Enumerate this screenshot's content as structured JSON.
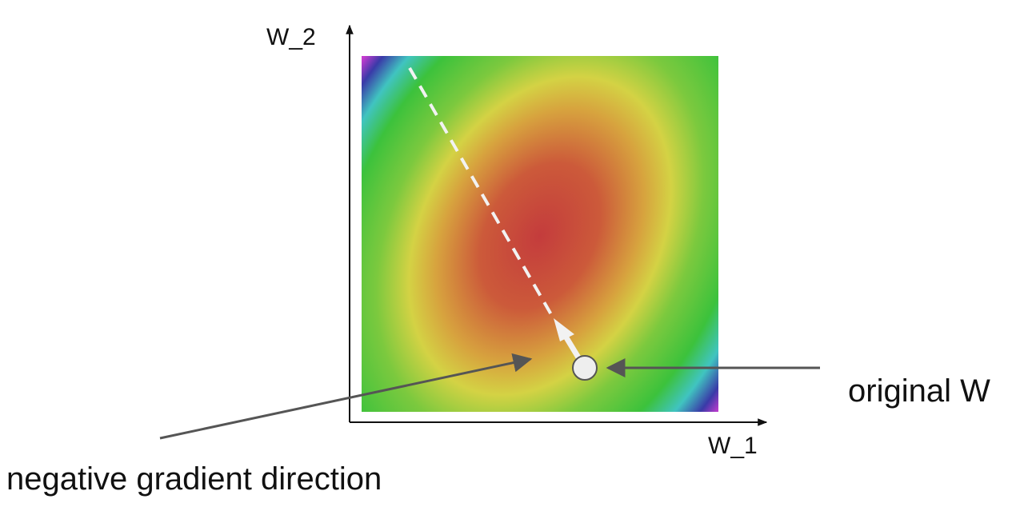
{
  "axes": {
    "y_label": "W_2",
    "x_label": "W_1"
  },
  "annotations": {
    "point": "original W",
    "direction": "negative gradient direction"
  }
}
